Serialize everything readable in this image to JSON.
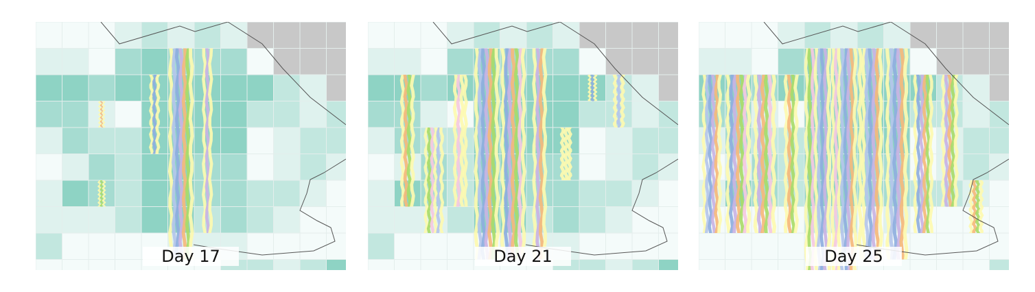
{
  "panels": [
    {
      "label": "Day 17"
    },
    {
      "label": "Day 21"
    },
    {
      "label": "Day 25"
    }
  ],
  "colors": {
    "teal_scale": [
      "#f4fbfa",
      "#dff2ee",
      "#c2e7df",
      "#a6dcd1",
      "#8ed3c4"
    ],
    "nodata": "#c8c8c8",
    "grid": "#e4eeec",
    "border_line": "#555555",
    "streak_palette": [
      "#fdfab0",
      "#b4c6ea",
      "#8eaede",
      "#c9b3e3",
      "#f5b87b",
      "#a9db69",
      "#f4c9e0"
    ]
  }
}
